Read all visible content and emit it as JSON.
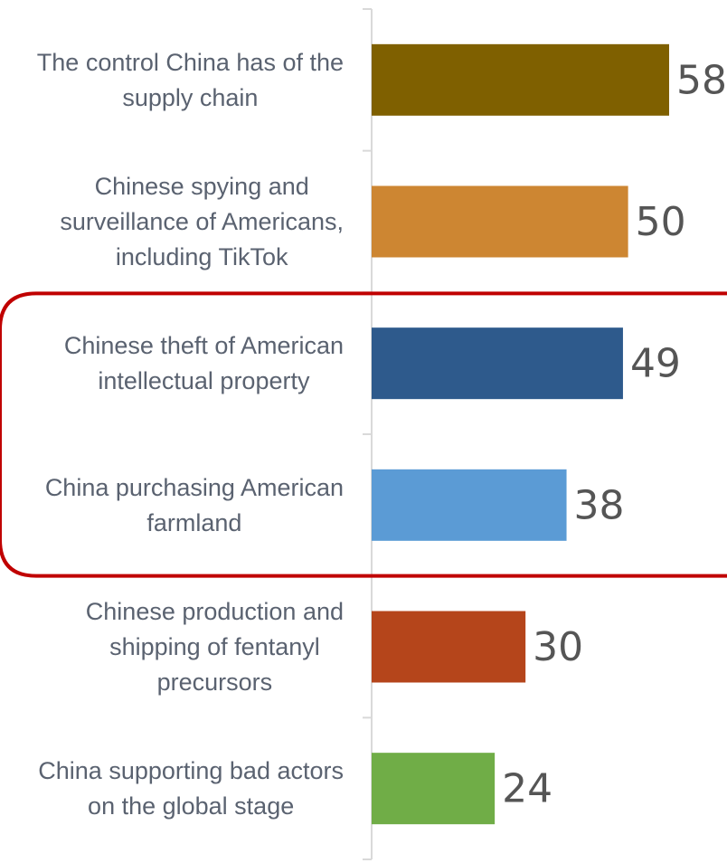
{
  "chart_data": {
    "type": "bar",
    "orientation": "horizontal",
    "categories": [
      "The control China has of the supply chain",
      "Chinese spying and surveillance of Americans, including TikTok",
      "Chinese theft of American intellectual property",
      "China purchasing American farmland",
      "Chinese production and shipping of fentanyl precursors",
      "China supporting bad actors on the global stage"
    ],
    "category_lines": [
      [
        "The control China has of the",
        "supply chain"
      ],
      [
        "Chinese spying and",
        "surveillance of Americans,",
        "including TikTok"
      ],
      [
        "Chinese theft of American",
        "intellectual property"
      ],
      [
        "China purchasing American",
        "farmland"
      ],
      [
        "Chinese production and",
        "shipping of fentanyl",
        "precursors"
      ],
      [
        "China supporting bad actors",
        "on the global stage"
      ]
    ],
    "values": [
      58,
      50,
      49,
      38,
      30,
      24
    ],
    "colors": [
      "#7f6000",
      "#cd8632",
      "#2e5a8c",
      "#5b9bd5",
      "#b5451b",
      "#70ad47"
    ],
    "highlight": {
      "categories": [
        2,
        3
      ],
      "color": "#c00000"
    },
    "grid": false,
    "legend": "none"
  }
}
